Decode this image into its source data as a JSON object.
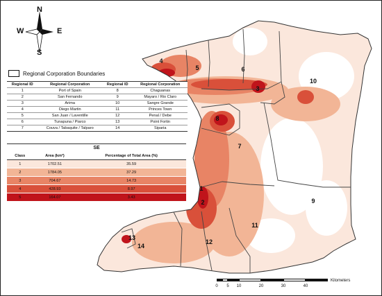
{
  "compass": {
    "n": "N",
    "s": "S",
    "e": "E",
    "w": "W"
  },
  "boundary_legend": "Regional Corporation Boundaries",
  "region_table": {
    "headers": [
      "Regional ID",
      "Regional Corporation",
      "Regional ID",
      "Regional Corporation"
    ],
    "rows": [
      [
        "1",
        "Port of Spain",
        "8",
        "Chaguanas"
      ],
      [
        "2",
        "San Fernando",
        "9",
        "Mayaro / Rio Claro"
      ],
      [
        "3",
        "Arima",
        "10",
        "Sangre Grande"
      ],
      [
        "4",
        "Diego Martin",
        "11",
        "Princes Town"
      ],
      [
        "5",
        "San Juan / Laventille",
        "12",
        "Penal / Debe"
      ],
      [
        "6",
        "Tunapuna / Piarco",
        "13",
        "Point Fortin"
      ],
      [
        "7",
        "Couva / Tabaquite / Talparo",
        "14",
        "Siparia"
      ]
    ]
  },
  "class_table": {
    "title": "SE",
    "headers": [
      "Class",
      "Area (km²)",
      "Percentage of Total Area (%)"
    ],
    "rows": [
      {
        "cls": "1",
        "area": "1702.51",
        "pct": "35.59",
        "color": "#fbe7dc"
      },
      {
        "cls": "2",
        "area": "1784.05",
        "pct": "37.29",
        "color": "#f2b596"
      },
      {
        "cls": "3",
        "area": "704.67",
        "pct": "14.73",
        "color": "#e88465"
      },
      {
        "cls": "4",
        "area": "428.93",
        "pct": "8.97",
        "color": "#d9503a"
      },
      {
        "cls": "5",
        "area": "164.07",
        "pct": "3.43",
        "color": "#c0141b"
      }
    ]
  },
  "region_labels": [
    "1",
    "2",
    "3",
    "4",
    "5",
    "6",
    "7",
    "8",
    "9",
    "10",
    "11",
    "12",
    "13",
    "14"
  ],
  "scalebar": {
    "ticks": [
      "0",
      "5",
      "10",
      "20",
      "30",
      "40"
    ],
    "unit": "Kilometers"
  }
}
